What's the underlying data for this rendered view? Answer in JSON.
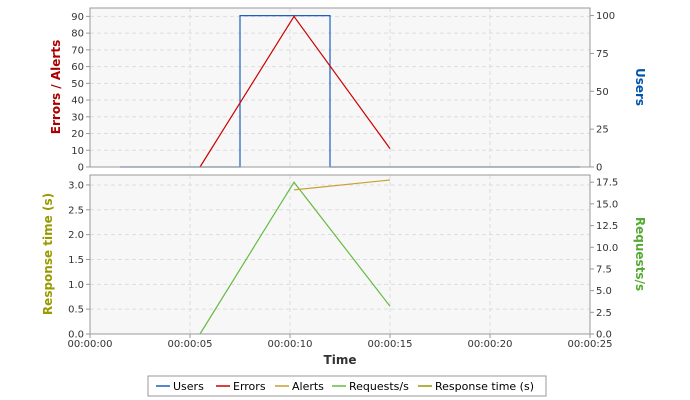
{
  "chart_data": {
    "type": "line",
    "x_label": "Time",
    "x_range_seconds": [
      0,
      25
    ],
    "x_ticks": [
      "00:00:00",
      "00:00:05",
      "00:00:10",
      "00:00:15",
      "00:00:20",
      "00:00:25"
    ],
    "x_tick_seconds": [
      0,
      5,
      10,
      15,
      20,
      25
    ],
    "grid": true,
    "legend_placement": "bottom",
    "legend": [
      "Users",
      "Errors",
      "Alerts",
      "Requests/s",
      "Response time (s)"
    ],
    "panels": [
      {
        "name": "top",
        "left_axis": {
          "label": "Errors / Alerts",
          "range": [
            0,
            95
          ],
          "ticks": [
            0,
            10,
            20,
            30,
            40,
            50,
            60,
            70,
            80,
            90
          ],
          "tick_labels": [
            "0",
            "10",
            "20",
            "30",
            "40",
            "50",
            "60",
            "70",
            "80",
            "90"
          ],
          "color": "#aa0000"
        },
        "right_axis": {
          "label": "Users",
          "range": [
            0,
            105
          ],
          "ticks": [
            0,
            25,
            50,
            75,
            100
          ],
          "tick_labels": [
            "0",
            "25",
            "50",
            "75",
            "100"
          ],
          "color": "#0055aa"
        },
        "series": [
          {
            "name": "Users",
            "axis": "right",
            "color": "#1f5fbf",
            "x": [
              1.5,
              7.5,
              7.5,
              12,
              12,
              24.5
            ],
            "y": [
              0,
              0,
              100,
              100,
              0,
              0
            ]
          },
          {
            "name": "Errors",
            "axis": "left",
            "color": "#cc0000",
            "x": [
              5.5,
              10.2,
              15
            ],
            "y": [
              0,
              90,
              11
            ]
          }
        ]
      },
      {
        "name": "bottom",
        "left_axis": {
          "label": "Response time (s)",
          "range": [
            0,
            3.2
          ],
          "ticks": [
            0,
            0.5,
            1.0,
            1.5,
            2.0,
            2.5,
            3.0
          ],
          "tick_labels": [
            "0.0",
            "0.5",
            "1.0",
            "1.5",
            "2.0",
            "2.5",
            "3.0"
          ],
          "color": "#999900"
        },
        "right_axis": {
          "label": "Requests/s",
          "range": [
            0,
            18.33
          ],
          "ticks": [
            0,
            2.5,
            5,
            7.5,
            10,
            12.5,
            15,
            17.5
          ],
          "tick_labels": [
            "0.0",
            "2.5",
            "5.0",
            "7.5",
            "10.0",
            "12.5",
            "15.0",
            "17.5"
          ],
          "color": "#55aa33"
        },
        "series": [
          {
            "name": "Requests/s",
            "axis": "right",
            "color": "#66bb44",
            "x": [
              5.5,
              10.2,
              15
            ],
            "y": [
              0,
              17.5,
              3.2
            ]
          },
          {
            "name": "Alerts",
            "axis": "left",
            "color": "#c9a030",
            "x": [
              10.2,
              15
            ],
            "y": [
              2.9,
              3.1
            ]
          }
        ]
      }
    ],
    "legend_colors": {
      "Users": "#1f5fbf",
      "Errors": "#cc0000",
      "Alerts": "#c9a030",
      "Requests/s": "#66bb44",
      "Response time (s)": "#999900"
    }
  }
}
